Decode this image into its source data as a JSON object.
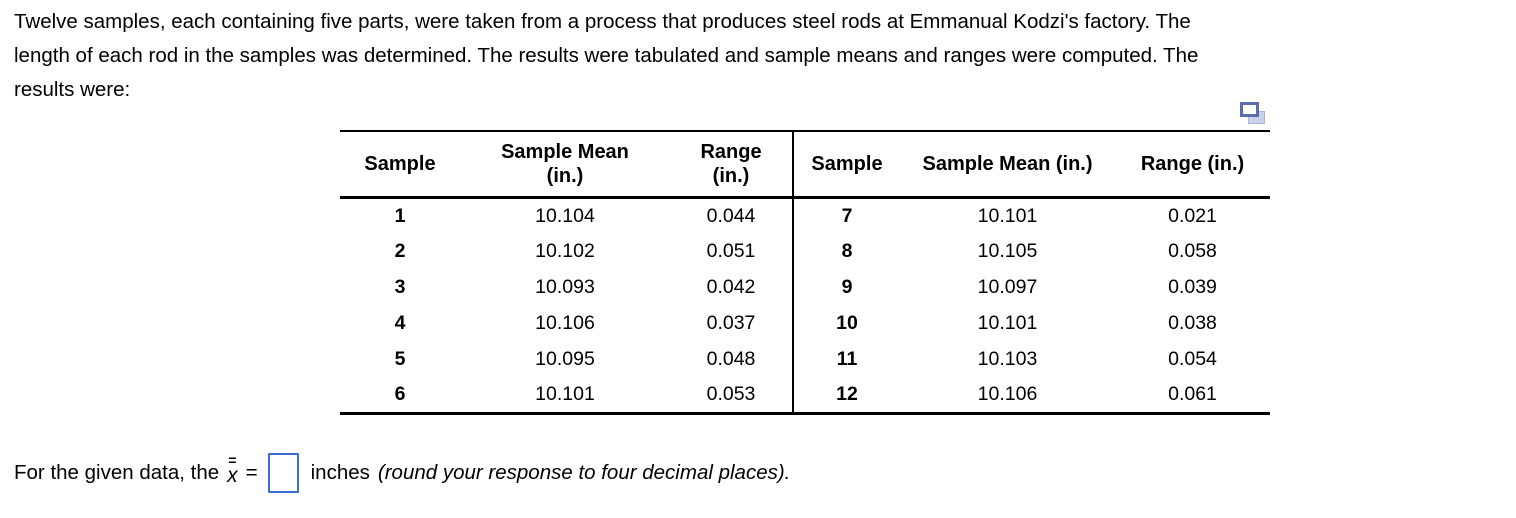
{
  "problem": {
    "line1": "Twelve samples, each containing five parts, were taken from a process that produces steel rods at Emmanual Kodzi's factory. The",
    "line2": "length of each rod in the samples was determined. The results were tabulated and sample means and ranges were computed. The",
    "line3": "results were:"
  },
  "icons": {
    "table_popup": "copy-icon"
  },
  "table": {
    "left": {
      "headers": {
        "sample": "Sample",
        "mean_line1": "Sample Mean",
        "mean_line2": "(in.)",
        "range_line1": "Range",
        "range_line2": "(in.)"
      },
      "rows": [
        {
          "sample": "1",
          "mean": "10.104",
          "range": "0.044"
        },
        {
          "sample": "2",
          "mean": "10.102",
          "range": "0.051"
        },
        {
          "sample": "3",
          "mean": "10.093",
          "range": "0.042"
        },
        {
          "sample": "4",
          "mean": "10.106",
          "range": "0.037"
        },
        {
          "sample": "5",
          "mean": "10.095",
          "range": "0.048"
        },
        {
          "sample": "6",
          "mean": "10.101",
          "range": "0.053"
        }
      ]
    },
    "right": {
      "headers": {
        "sample": "Sample",
        "mean": "Sample Mean (in.)",
        "range": "Range (in.)"
      },
      "rows": [
        {
          "sample": "7",
          "mean": "10.101",
          "range": "0.021"
        },
        {
          "sample": "8",
          "mean": "10.105",
          "range": "0.058"
        },
        {
          "sample": "9",
          "mean": "10.097",
          "range": "0.039"
        },
        {
          "sample": "10",
          "mean": "10.101",
          "range": "0.038"
        },
        {
          "sample": "11",
          "mean": "10.103",
          "range": "0.054"
        },
        {
          "sample": "12",
          "mean": "10.106",
          "range": "0.061"
        }
      ]
    }
  },
  "answer": {
    "prefix": "For the given data, the",
    "double_bar": "=",
    "x_symbol": "x",
    "equals": "=",
    "input_value": "",
    "unit": "inches",
    "note": "(round your response to four decimal places)."
  },
  "colors": {
    "answer_box_border": "#3b6cd4",
    "popup_icon_accent": "#5c6cae"
  }
}
